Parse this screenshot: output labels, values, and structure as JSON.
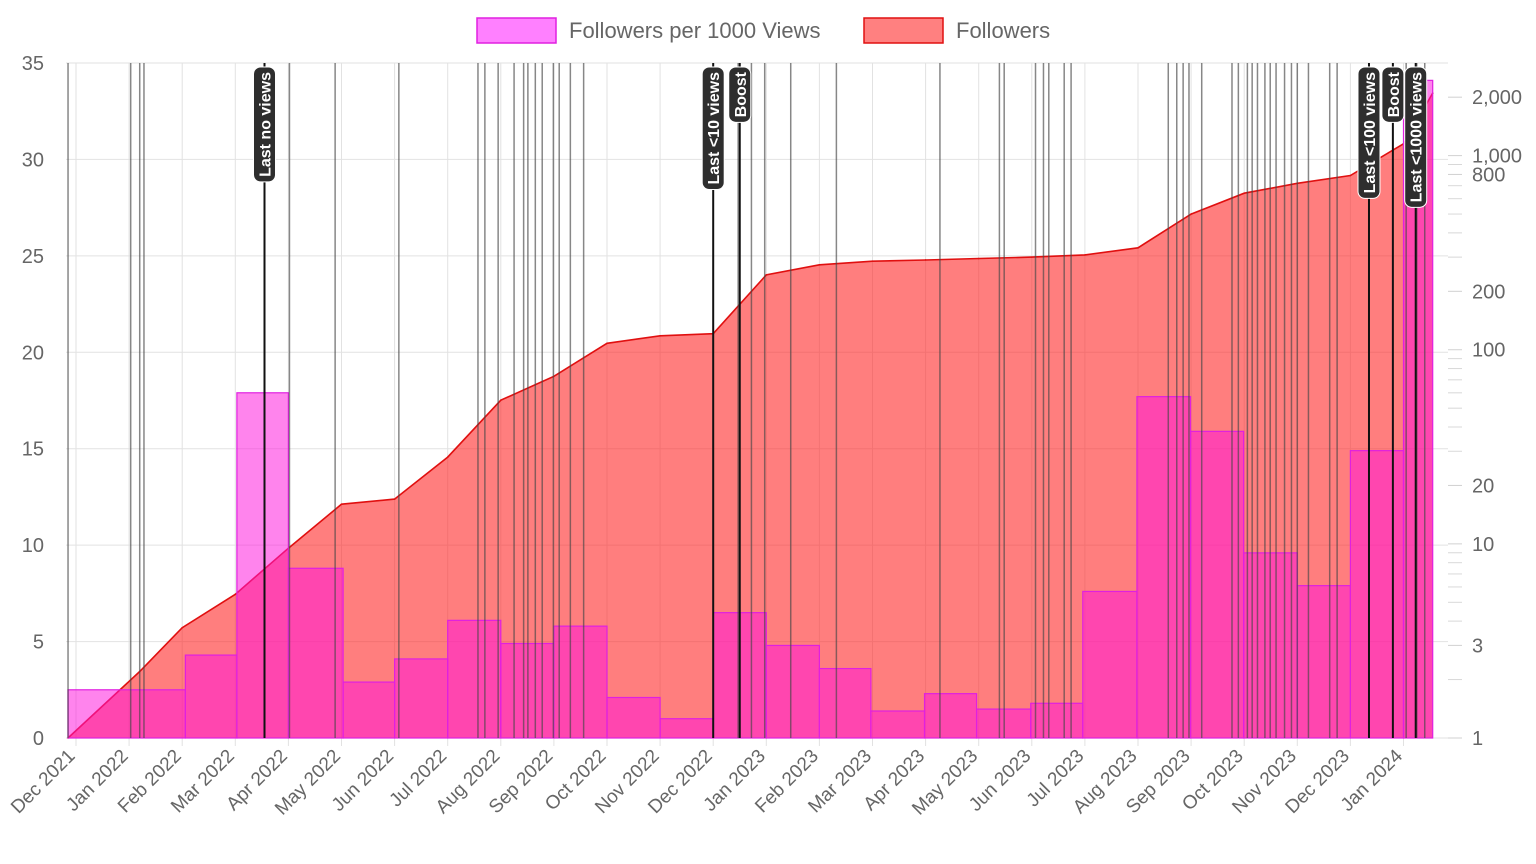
{
  "chart_data": {
    "type": "bar",
    "legend": [
      {
        "name": "Followers per 1000 Views",
        "fill": "#ff80ff",
        "stroke": "#e020e0"
      },
      {
        "name": "Followers",
        "fill": "#ff8080",
        "stroke": "#e01010"
      }
    ],
    "x_labels": [
      "Dec 2021",
      "Jan 2022",
      "Feb 2022",
      "Mar 2022",
      "Apr 2022",
      "May 2022",
      "Jun 2022",
      "Jul 2022",
      "Aug 2022",
      "Sep 2022",
      "Oct 2022",
      "Nov 2022",
      "Dec 2022",
      "Jan 2023",
      "Feb 2023",
      "Mar 2023",
      "Apr 2023",
      "May 2023",
      "Jun 2023",
      "Jul 2023",
      "Aug 2023",
      "Sep 2023",
      "Oct 2023",
      "Nov 2023",
      "Dec 2023",
      "Jan 2024"
    ],
    "x_months": [
      0,
      1,
      2,
      3,
      4,
      5,
      6,
      7,
      8,
      9,
      10,
      11,
      12,
      13,
      14,
      15,
      16,
      17,
      18,
      19,
      20,
      21,
      22,
      23,
      24,
      25
    ],
    "y_left": {
      "min": 0,
      "max": 35,
      "ticks": [
        0,
        5,
        10,
        15,
        20,
        25,
        30,
        35
      ],
      "labels": [
        "0",
        "5",
        "10",
        "15",
        "20",
        "25",
        "30",
        "35"
      ]
    },
    "y_right": {
      "scale": "log",
      "min": 1,
      "max": 3000,
      "labels": [
        {
          "v": 1,
          "t": "1"
        },
        {
          "v": 3,
          "t": "3"
        },
        {
          "v": 10,
          "t": "10"
        },
        {
          "v": 20,
          "t": "20"
        },
        {
          "v": 100,
          "t": "100"
        },
        {
          "v": 200,
          "t": "200"
        },
        {
          "v": 800,
          "t": "800"
        },
        {
          "v": 1000,
          "t": "1,000"
        },
        {
          "v": 2000,
          "t": "2,000"
        }
      ],
      "minor": [
        2,
        4,
        5,
        6,
        7,
        8,
        9,
        30,
        40,
        50,
        60,
        70,
        80,
        90,
        300,
        400,
        500,
        600,
        700,
        900
      ]
    },
    "series": [
      {
        "name": "Followers per 1000 Views",
        "axis": "left",
        "kind": "step",
        "bars": [
          {
            "x0": -0.15,
            "x1": 2.06,
            "v": 2.5
          },
          {
            "x0": 2.06,
            "x1": 3.03,
            "v": 4.3
          },
          {
            "x0": 3.03,
            "x1": 4.0,
            "v": 17.9
          },
          {
            "x0": 4.0,
            "x1": 5.03,
            "v": 8.8
          },
          {
            "x0": 5.03,
            "x1": 6.0,
            "v": 2.9
          },
          {
            "x0": 6.0,
            "x1": 7.0,
            "v": 4.1
          },
          {
            "x0": 7.0,
            "x1": 8.0,
            "v": 6.1
          },
          {
            "x0": 8.0,
            "x1": 9.0,
            "v": 4.9
          },
          {
            "x0": 9.0,
            "x1": 10.0,
            "v": 5.8
          },
          {
            "x0": 10.0,
            "x1": 11.0,
            "v": 2.1
          },
          {
            "x0": 11.0,
            "x1": 12.0,
            "v": 1.0
          },
          {
            "x0": 12.0,
            "x1": 13.0,
            "v": 6.5
          },
          {
            "x0": 13.0,
            "x1": 14.0,
            "v": 4.8
          },
          {
            "x0": 14.0,
            "x1": 14.97,
            "v": 3.6
          },
          {
            "x0": 14.97,
            "x1": 15.98,
            "v": 1.4
          },
          {
            "x0": 15.98,
            "x1": 16.96,
            "v": 2.3
          },
          {
            "x0": 16.96,
            "x1": 17.98,
            "v": 1.5
          },
          {
            "x0": 17.98,
            "x1": 18.96,
            "v": 1.8
          },
          {
            "x0": 18.96,
            "x1": 19.98,
            "v": 7.6
          },
          {
            "x0": 19.98,
            "x1": 20.99,
            "v": 17.7
          },
          {
            "x0": 20.99,
            "x1": 21.99,
            "v": 15.9
          },
          {
            "x0": 21.99,
            "x1": 23.0,
            "v": 9.6
          },
          {
            "x0": 23.0,
            "x1": 24.0,
            "v": 7.9
          },
          {
            "x0": 24.0,
            "x1": 25.0,
            "v": 14.9
          },
          {
            "x0": 25.0,
            "x1": 25.55,
            "v": 34.1
          }
        ]
      },
      {
        "name": "Followers",
        "axis": "right",
        "kind": "area",
        "points": [
          {
            "x": -0.15,
            "y": 1
          },
          {
            "x": 1.2,
            "y": 2.2
          },
          {
            "x": 2.0,
            "y": 3.7
          },
          {
            "x": 3.0,
            "y": 5.5
          },
          {
            "x": 4.0,
            "y": 9.5
          },
          {
            "x": 5.0,
            "y": 16
          },
          {
            "x": 6.0,
            "y": 17
          },
          {
            "x": 7.0,
            "y": 28
          },
          {
            "x": 8.0,
            "y": 55
          },
          {
            "x": 9.0,
            "y": 73
          },
          {
            "x": 10.0,
            "y": 108
          },
          {
            "x": 11.0,
            "y": 118
          },
          {
            "x": 12.0,
            "y": 121
          },
          {
            "x": 13.0,
            "y": 243
          },
          {
            "x": 14.0,
            "y": 274
          },
          {
            "x": 15.0,
            "y": 286
          },
          {
            "x": 16.0,
            "y": 290
          },
          {
            "x": 17.0,
            "y": 295
          },
          {
            "x": 18.0,
            "y": 300
          },
          {
            "x": 19.0,
            "y": 308
          },
          {
            "x": 20.0,
            "y": 335
          },
          {
            "x": 21.0,
            "y": 500
          },
          {
            "x": 22.0,
            "y": 640
          },
          {
            "x": 23.0,
            "y": 720
          },
          {
            "x": 24.0,
            "y": 790
          },
          {
            "x": 25.0,
            "y": 1150
          },
          {
            "x": 25.55,
            "y": 2100
          }
        ]
      }
    ],
    "event_lines": [
      -0.15,
      1.03,
      1.2,
      1.28,
      4.02,
      4.88,
      6.08,
      7.57,
      7.7,
      7.95,
      8.25,
      8.43,
      8.51,
      8.65,
      8.78,
      8.99,
      9.1,
      9.31,
      9.56,
      12.47,
      12.72,
      12.97,
      13.46,
      14.32,
      16.27,
      17.39,
      17.48,
      18.07,
      18.22,
      18.32,
      18.61,
      18.74,
      20.57,
      20.73,
      20.85,
      20.96,
      21.2,
      21.77,
      21.89,
      22.06,
      22.15,
      22.25,
      22.39,
      22.49,
      22.6,
      22.76,
      22.89,
      23.0,
      23.21,
      23.61,
      23.75,
      25.05,
      25.25,
      25.4
    ],
    "annotations": [
      {
        "label": "Last no views",
        "x": 3.55
      },
      {
        "label": "Last <10 views",
        "x": 12.0
      },
      {
        "label": "Boost",
        "x": 12.5
      },
      {
        "label": "Last <100 views",
        "x": 24.35
      },
      {
        "label": "Boost",
        "x": 24.8
      },
      {
        "label": "Last <1000 views",
        "x": 25.23
      }
    ]
  }
}
